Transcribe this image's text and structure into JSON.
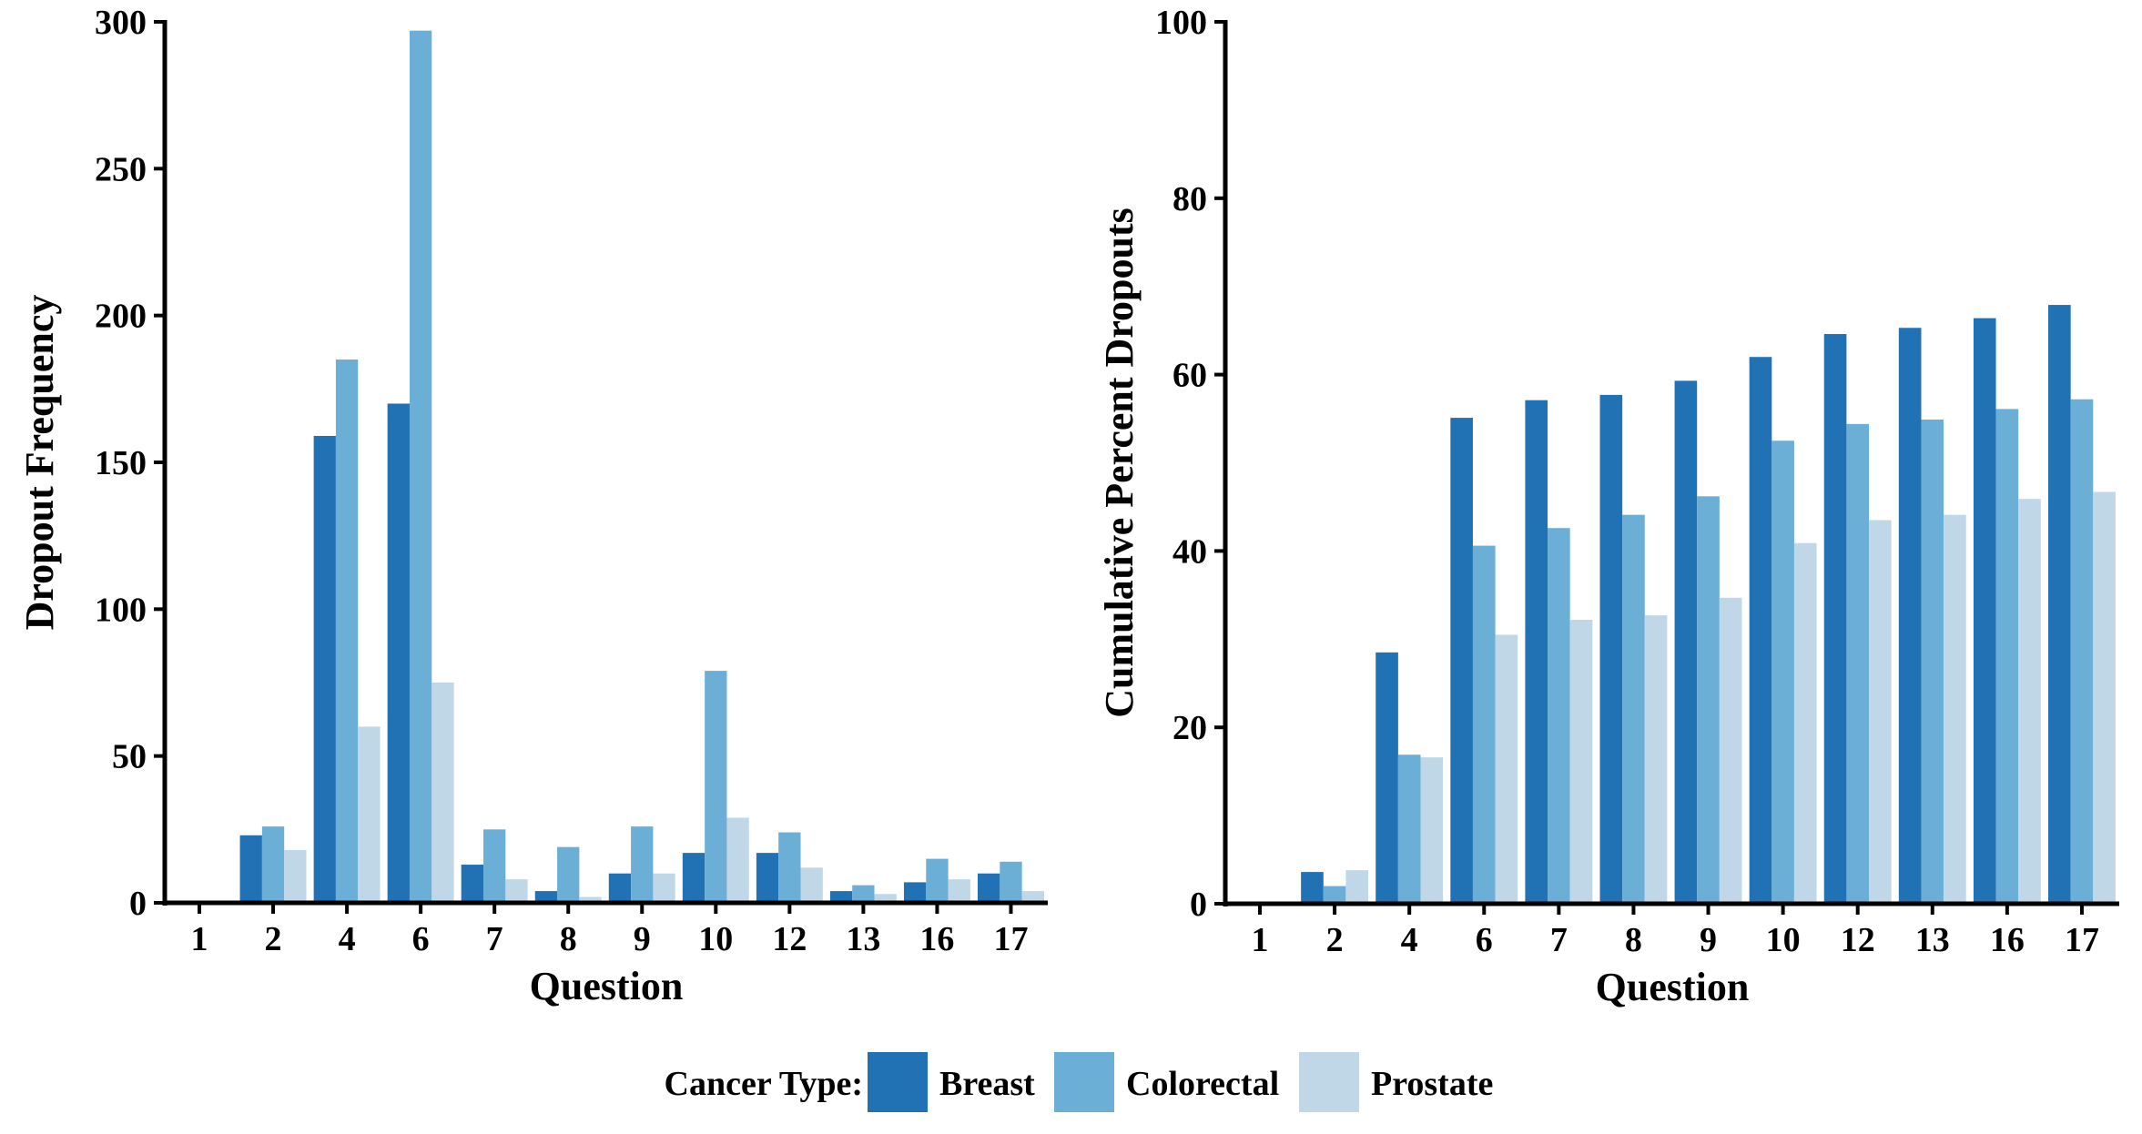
{
  "legend": {
    "title": "Cancer Type:",
    "items": [
      {
        "label": "Breast",
        "color": "#2171b5"
      },
      {
        "label": "Colorectal",
        "color": "#6baed6"
      },
      {
        "label": "Prostate",
        "color": "#c0d7e7"
      }
    ]
  },
  "chart_data": [
    {
      "type": "bar",
      "title": "",
      "xlabel": "Question",
      "ylabel": "Dropout Frequency",
      "ylim": [
        0,
        300
      ],
      "yticks": [
        "0",
        "50",
        "100",
        "150",
        "200",
        "250",
        "300"
      ],
      "grid": false,
      "categories": [
        "1",
        "2",
        "4",
        "6",
        "7",
        "8",
        "9",
        "10",
        "12",
        "13",
        "16",
        "17"
      ],
      "series": [
        {
          "name": "Breast",
          "values": [
            0,
            23,
            159,
            170,
            13,
            4,
            10,
            17,
            17,
            4,
            7,
            10
          ]
        },
        {
          "name": "Colorectal",
          "values": [
            0,
            26,
            185,
            297,
            25,
            19,
            26,
            79,
            24,
            6,
            15,
            14
          ]
        },
        {
          "name": "Prostate",
          "values": [
            0,
            18,
            60,
            75,
            8,
            2,
            10,
            29,
            12,
            3,
            8,
            4
          ]
        }
      ],
      "legend_position": "bottom"
    },
    {
      "type": "bar",
      "title": "",
      "xlabel": "Question",
      "ylabel": "Cumulative Percent Dropouts",
      "ylim": [
        0,
        100
      ],
      "yticks": [
        "0",
        "20",
        "40",
        "60",
        "80",
        "100"
      ],
      "grid": false,
      "categories": [
        "1",
        "2",
        "4",
        "6",
        "7",
        "8",
        "9",
        "10",
        "12",
        "13",
        "16",
        "17"
      ],
      "series": [
        {
          "name": "Breast",
          "values": [
            0,
            3.6,
            28.5,
            55.1,
            57.1,
            57.7,
            59.3,
            62.0,
            64.6,
            65.3,
            66.4,
            67.9
          ]
        },
        {
          "name": "Colorectal",
          "values": [
            0,
            2.0,
            16.9,
            40.6,
            42.6,
            44.1,
            46.2,
            52.5,
            54.4,
            54.9,
            56.1,
            57.2
          ]
        },
        {
          "name": "Prostate",
          "values": [
            0,
            3.8,
            16.6,
            30.5,
            32.2,
            32.7,
            34.7,
            40.9,
            43.5,
            44.1,
            45.9,
            46.7
          ]
        }
      ],
      "legend_position": "bottom"
    }
  ]
}
